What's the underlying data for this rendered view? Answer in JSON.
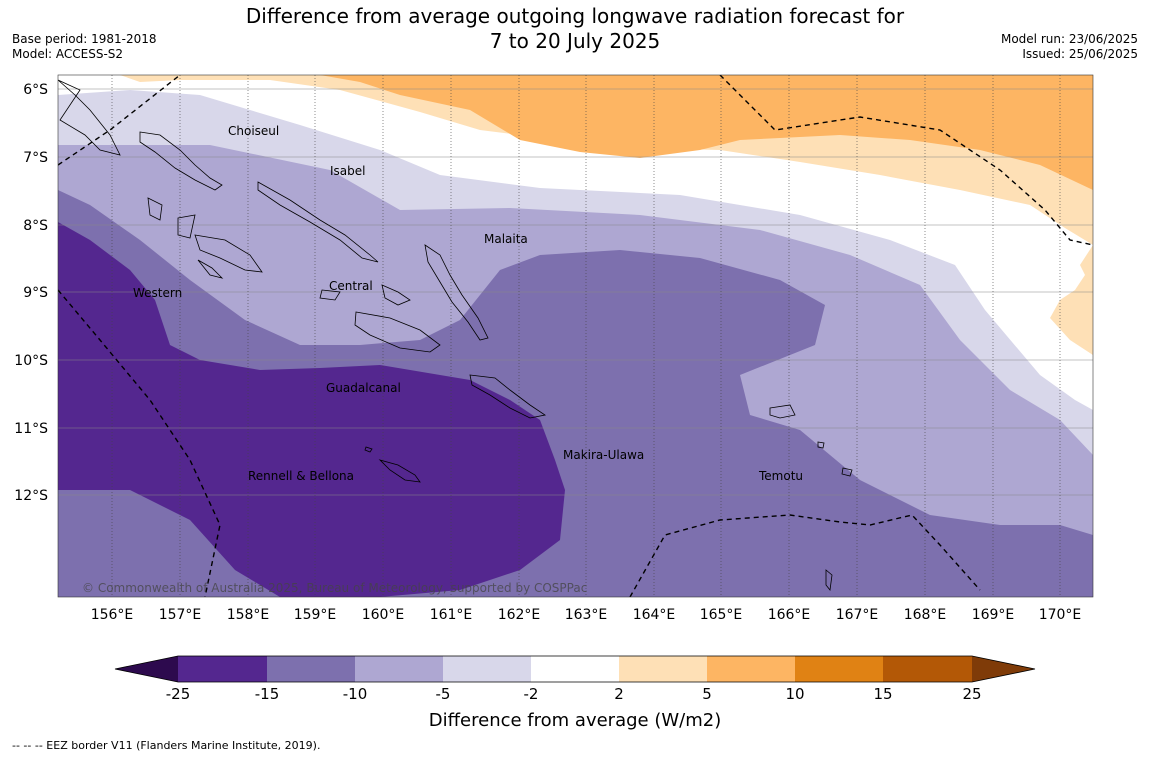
{
  "title": {
    "line1": "Difference from average outgoing longwave radiation forecast for",
    "line2": "7 to 20 July 2025"
  },
  "meta_left": {
    "base_period": "Base period: 1981-2018",
    "model": "Model: ACCESS-S2"
  },
  "meta_right": {
    "model_run": "Model run: 23/06/2025",
    "issued": "Issued: 25/06/2025"
  },
  "map": {
    "latitudes": [
      "6°S",
      "7°S",
      "8°S",
      "9°S",
      "10°S",
      "11°S",
      "12°S"
    ],
    "longitudes": [
      "156°E",
      "157°E",
      "158°E",
      "159°E",
      "160°E",
      "161°E",
      "162°E",
      "163°E",
      "164°E",
      "165°E",
      "166°E",
      "167°E",
      "168°E",
      "169°E",
      "170°E"
    ],
    "regions": [
      "Choiseul",
      "Isabel",
      "Malaita",
      "Central",
      "Western",
      "Guadalcanal",
      "Makira-Ulawa",
      "Rennell & Bellona",
      "Temotu"
    ],
    "copyright": "© Commonwealth of Australia 2025, Bureau of Meteorology, supported by COSPPac"
  },
  "colorbar": {
    "labels": [
      "-25",
      "-15",
      "-10",
      "-5",
      "-2",
      "2",
      "5",
      "10",
      "15",
      "25"
    ],
    "colors": [
      "#2d0a4e",
      "#54278f",
      "#7d70ae",
      "#aea7d2",
      "#d8d7ea",
      "#ffffff",
      "#fee0b6",
      "#fdb563",
      "#e08214",
      "#b35806",
      "#7f3b08"
    ],
    "title": "Difference from average (W/m2)"
  },
  "footer": "--  --  -- EEZ border V11 (Flanders Marine Institute, 2019)."
}
